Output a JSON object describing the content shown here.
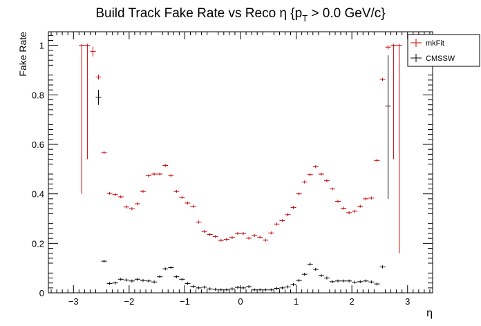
{
  "chart_data": {
    "type": "scatter",
    "title_main": "Build Track Fake Rate vs Reco η {p",
    "title_sub": "T",
    "title_tail": " > 0.0 GeV/c}",
    "xlabel": "η",
    "ylabel": "Fake Rate",
    "xlim": [
      -3.45,
      3.45
    ],
    "ylim": [
      0,
      1.055
    ],
    "x_ticks": [
      -3,
      -2,
      -1,
      0,
      1,
      2,
      3
    ],
    "x_tick_labels": [
      "−3",
      "−2",
      "−1",
      "0",
      "1",
      "2",
      "3"
    ],
    "y_ticks": [
      0,
      0.2,
      0.4,
      0.6,
      0.8,
      1
    ],
    "y_tick_labels": [
      "0",
      "0.2",
      "0.4",
      "0.6",
      "0.8",
      "1"
    ],
    "legend": [
      {
        "name": "mkFit",
        "color": "#cc0000"
      },
      {
        "name": "CMSSW",
        "color": "#000000"
      }
    ],
    "legend_position": "top-right",
    "bin_half_width": 0.05,
    "series": [
      {
        "name": "mkFit",
        "color": "#cc0000",
        "x": [
          -2.85,
          -2.75,
          -2.65,
          -2.55,
          -2.45,
          -2.35,
          -2.25,
          -2.15,
          -2.05,
          -1.95,
          -1.85,
          -1.75,
          -1.65,
          -1.55,
          -1.45,
          -1.35,
          -1.25,
          -1.15,
          -1.05,
          -0.95,
          -0.85,
          -0.75,
          -0.65,
          -0.55,
          -0.45,
          -0.35,
          -0.25,
          -0.15,
          -0.05,
          0.05,
          0.15,
          0.25,
          0.35,
          0.45,
          0.55,
          0.65,
          0.75,
          0.85,
          0.95,
          1.05,
          1.15,
          1.25,
          1.35,
          1.45,
          1.55,
          1.65,
          1.75,
          1.85,
          1.95,
          2.05,
          2.15,
          2.25,
          2.35,
          2.45,
          2.55,
          2.65,
          2.75,
          2.85
        ],
        "y": [
          1.0,
          1.0,
          0.975,
          0.872,
          0.567,
          0.402,
          0.397,
          0.388,
          0.347,
          0.34,
          0.36,
          0.41,
          0.473,
          0.48,
          0.48,
          0.515,
          0.474,
          0.41,
          0.386,
          0.363,
          0.35,
          0.286,
          0.248,
          0.236,
          0.228,
          0.212,
          0.216,
          0.224,
          0.24,
          0.24,
          0.221,
          0.232,
          0.225,
          0.213,
          0.242,
          0.278,
          0.292,
          0.316,
          0.345,
          0.4,
          0.448,
          0.478,
          0.51,
          0.48,
          0.453,
          0.42,
          0.37,
          0.342,
          0.324,
          0.33,
          0.35,
          0.38,
          0.383,
          0.535,
          0.863,
          0.993,
          1.0,
          1.0
        ],
        "err_low": [
          0.6,
          0.46,
          0.02,
          0.01,
          0,
          0,
          0,
          0,
          0,
          0,
          0,
          0,
          0,
          0,
          0,
          0,
          0,
          0,
          0,
          0,
          0,
          0,
          0,
          0,
          0,
          0,
          0,
          0,
          0,
          0,
          0,
          0,
          0,
          0,
          0,
          0,
          0,
          0,
          0,
          0,
          0,
          0,
          0,
          0,
          0,
          0,
          0,
          0,
          0,
          0,
          0,
          0,
          0,
          0,
          0,
          0.01,
          0.46,
          0.84
        ],
        "err_high": [
          0,
          0,
          0.02,
          0.01,
          0,
          0,
          0,
          0,
          0,
          0,
          0,
          0,
          0,
          0,
          0,
          0,
          0,
          0,
          0,
          0,
          0,
          0,
          0,
          0,
          0,
          0,
          0,
          0,
          0,
          0,
          0,
          0,
          0,
          0,
          0,
          0,
          0,
          0,
          0,
          0,
          0,
          0,
          0,
          0,
          0,
          0,
          0,
          0,
          0,
          0,
          0,
          0,
          0,
          0,
          0,
          0.007,
          0,
          0
        ]
      },
      {
        "name": "CMSSW",
        "color": "#000000",
        "x": [
          -2.55,
          -2.45,
          -2.35,
          -2.25,
          -2.15,
          -2.05,
          -1.95,
          -1.85,
          -1.75,
          -1.65,
          -1.55,
          -1.45,
          -1.35,
          -1.25,
          -1.15,
          -1.05,
          -0.95,
          -0.85,
          -0.75,
          -0.65,
          -0.55,
          -0.45,
          -0.35,
          -0.25,
          -0.15,
          -0.05,
          0.05,
          0.15,
          0.25,
          0.35,
          0.45,
          0.55,
          0.65,
          0.75,
          0.85,
          0.95,
          1.05,
          1.15,
          1.25,
          1.35,
          1.45,
          1.55,
          1.65,
          1.75,
          1.85,
          1.95,
          2.05,
          2.15,
          2.25,
          2.35,
          2.45,
          2.55,
          2.65
        ],
        "y": [
          0.79,
          0.128,
          0.038,
          0.04,
          0.055,
          0.052,
          0.048,
          0.055,
          0.05,
          0.048,
          0.044,
          0.065,
          0.097,
          0.102,
          0.065,
          0.055,
          0.038,
          0.026,
          0.02,
          0.023,
          0.016,
          0.014,
          0.012,
          0.012,
          0.016,
          0.022,
          0.02,
          0.025,
          0.012,
          0.012,
          0.012,
          0.012,
          0.018,
          0.02,
          0.024,
          0.034,
          0.05,
          0.075,
          0.116,
          0.095,
          0.07,
          0.06,
          0.045,
          0.048,
          0.048,
          0.048,
          0.043,
          0.045,
          0.048,
          0.044,
          0.036,
          0.105,
          0.755
        ],
        "err_low": [
          0.03,
          0,
          0,
          0,
          0,
          0,
          0,
          0,
          0,
          0,
          0,
          0,
          0,
          0,
          0,
          0,
          0,
          0,
          0,
          0,
          0,
          0,
          0,
          0,
          0,
          0,
          0,
          0,
          0,
          0,
          0,
          0,
          0,
          0,
          0,
          0,
          0,
          0,
          0,
          0,
          0,
          0,
          0,
          0,
          0,
          0,
          0,
          0,
          0,
          0,
          0,
          0,
          0.375
        ],
        "err_high": [
          0.03,
          0,
          0,
          0,
          0,
          0,
          0,
          0,
          0,
          0,
          0,
          0,
          0,
          0,
          0,
          0,
          0,
          0,
          0,
          0,
          0,
          0,
          0,
          0,
          0,
          0,
          0,
          0,
          0,
          0,
          0,
          0,
          0,
          0,
          0,
          0,
          0,
          0,
          0,
          0,
          0,
          0,
          0,
          0,
          0,
          0,
          0,
          0,
          0,
          0,
          0,
          0,
          0.205
        ]
      }
    ]
  }
}
